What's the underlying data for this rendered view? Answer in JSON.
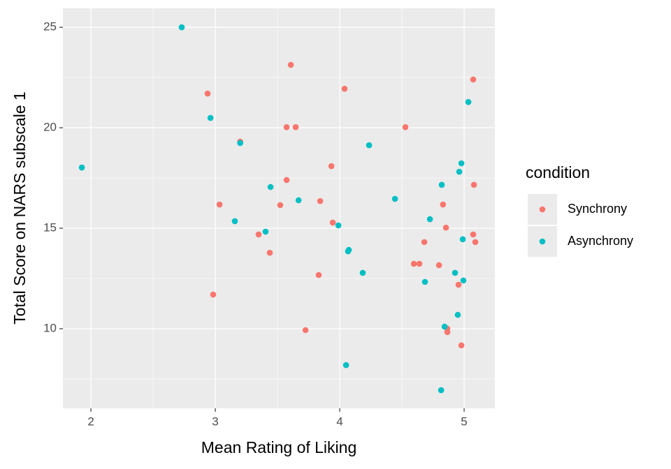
{
  "chart_data": {
    "type": "scatter",
    "xlabel": "Mean Rating of Liking",
    "ylabel": "Total Score on NARS subscale 1",
    "xlim": [
      1.775,
      5.247
    ],
    "xticks": [
      2,
      3,
      4,
      5
    ],
    "ylim": [
      6.04,
      25.94
    ],
    "yticks": [
      10,
      15,
      20,
      25
    ],
    "grid": true,
    "legend_position": "right",
    "legend_title": "condition",
    "series": [
      {
        "name": "Synchrony",
        "color": "#F8766D",
        "x": [
          2.938,
          2.983,
          3.034,
          3.2,
          3.348,
          3.438,
          3.522,
          3.573,
          3.573,
          3.607,
          3.646,
          3.725,
          3.831,
          3.843,
          3.933,
          3.944,
          4.039,
          4.528,
          4.596,
          4.64,
          4.68,
          4.798,
          4.83,
          4.854,
          4.865,
          4.865,
          4.955,
          4.978,
          5.073,
          5.079,
          5.073,
          5.09
        ],
        "values": [
          21.7,
          11.7,
          16.18,
          19.31,
          14.69,
          13.78,
          16.15,
          17.4,
          20.03,
          23.13,
          20.03,
          9.93,
          12.67,
          16.35,
          18.09,
          15.28,
          21.94,
          20.03,
          13.23,
          13.23,
          14.31,
          13.16,
          16.18,
          15.03,
          10.0,
          9.83,
          12.19,
          9.17,
          22.4,
          17.16,
          14.69,
          14.31
        ]
      },
      {
        "name": "Asynchrony",
        "color": "#00BFC4",
        "x": [
          1.927,
          2.73,
          2.961,
          3.2,
          3.157,
          3.404,
          3.444,
          3.669,
          3.989,
          4.051,
          4.067,
          4.073,
          4.185,
          4.236,
          4.444,
          4.685,
          4.725,
          4.82,
          4.843,
          4.815,
          4.927,
          4.949,
          4.961,
          4.978,
          4.989,
          4.994,
          5.034
        ],
        "values": [
          18.02,
          25.0,
          20.49,
          19.24,
          15.35,
          14.83,
          17.05,
          16.39,
          15.14,
          8.19,
          13.85,
          13.92,
          12.78,
          19.13,
          16.46,
          12.33,
          15.45,
          17.16,
          10.1,
          6.94,
          12.78,
          10.69,
          17.81,
          18.23,
          14.45,
          12.4,
          21.28
        ]
      }
    ]
  }
}
